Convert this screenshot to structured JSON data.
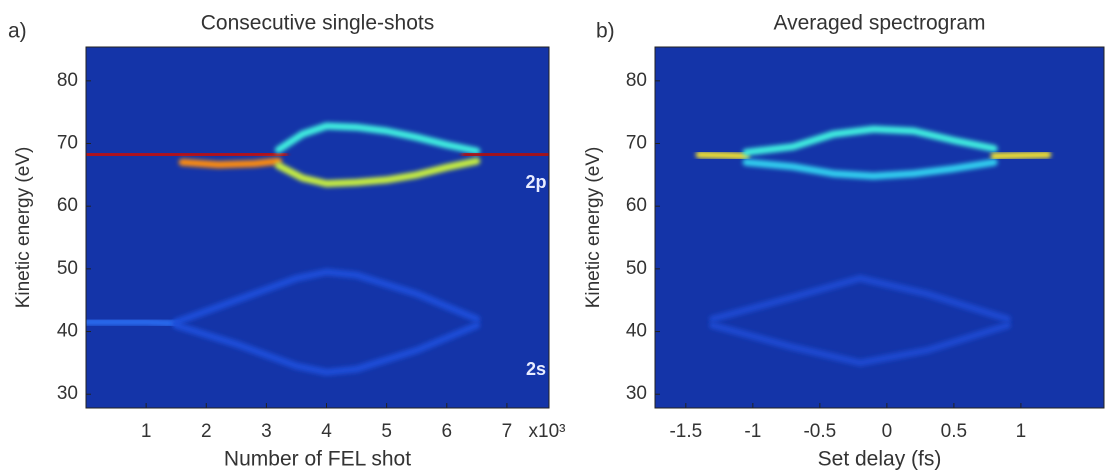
{
  "chart_data": [
    {
      "type": "spectrogram",
      "panel_label": "a)",
      "title": "Consecutive single-shots",
      "xlabel": "Number of FEL shot",
      "ylabel": "Kinetic energy (eV)",
      "x_multiplier": "x10³",
      "annotations": [
        "2p",
        "2s"
      ],
      "xlim": [
        0,
        7.7
      ],
      "ylim": [
        27.8,
        85.4
      ],
      "xticks": [
        1,
        2,
        3,
        4,
        5,
        6,
        7
      ],
      "yticks": [
        30,
        40,
        50,
        60,
        70,
        80
      ],
      "background": "#1434a8",
      "grid": false,
      "series": [
        {
          "color": "#c01010",
          "x": [
            0,
            1,
            2,
            3,
            3.3
          ],
          "values": [
            68.2,
            68.2,
            68.2,
            68.3,
            68.2
          ]
        },
        {
          "color": "#ff8c10",
          "x": [
            1.6,
            2.2,
            2.8,
            3.2
          ],
          "values": [
            67,
            66.6,
            66.8,
            67.2
          ]
        },
        {
          "color": "#40f0e0",
          "x": [
            3.2,
            3.6,
            4,
            4.5,
            5,
            5.5,
            6,
            6.5
          ],
          "values": [
            69,
            71.5,
            72.8,
            72.6,
            72,
            71,
            69.8,
            68.8
          ]
        },
        {
          "color": "#c8f040",
          "x": [
            3.2,
            3.6,
            4,
            4.5,
            5,
            5.5,
            6,
            6.5
          ],
          "values": [
            66.5,
            64.5,
            63.6,
            63.8,
            64.2,
            65,
            66.2,
            67.2
          ]
        },
        {
          "color": "#b01010",
          "x": [
            6.3,
            7,
            7.7
          ],
          "values": [
            68.2,
            68.3,
            68.2
          ]
        },
        {
          "color": "#2a6cf0",
          "x": [
            0,
            1,
            1.5
          ],
          "values": [
            41.5,
            41.5,
            41.3
          ]
        },
        {
          "color": "#1f4ed8",
          "x": [
            1.5,
            2.5,
            3.5,
            4,
            4.5,
            5.5,
            6.5
          ],
          "values": [
            41.5,
            45,
            48.5,
            49.5,
            49,
            46,
            42
          ]
        },
        {
          "color": "#1f4ed8",
          "x": [
            1.5,
            2.5,
            3.5,
            4,
            4.5,
            5.5,
            6.5
          ],
          "values": [
            41,
            38,
            34.5,
            33.5,
            34,
            37,
            41
          ]
        },
        {
          "color": "#2a6cf0",
          "x": [
            6.5,
            7,
            7.7
          ],
          "values": [
            41.5,
            41.5,
            41.5
          ]
        }
      ]
    },
    {
      "type": "spectrogram",
      "panel_label": "b)",
      "title": "Averaged spectrogram",
      "xlabel": "Set delay (fs)",
      "ylabel": "Kinetic energy (eV)",
      "xlim": [
        -1.73,
        1.62
      ],
      "ylim": [
        27.8,
        85.4
      ],
      "xticks": [
        -1.5,
        -1,
        -0.5,
        0,
        0.5,
        1
      ],
      "yticks": [
        30,
        40,
        50,
        60,
        70,
        80
      ],
      "background": "#1434a8",
      "grid": false,
      "series": [
        {
          "color": "#c01010",
          "x": [
            -1.73,
            -1.55,
            -1.4
          ],
          "values": [
            68.2,
            68.2,
            68.2
          ]
        },
        {
          "color": "#f0e030",
          "x": [
            -1.4,
            -1.2,
            -1.05
          ],
          "values": [
            68.2,
            68.1,
            68
          ]
        },
        {
          "color": "#40f0e0",
          "x": [
            -1.05,
            -0.7,
            -0.4,
            -0.1,
            0.2,
            0.5,
            0.8
          ],
          "values": [
            68.6,
            69.5,
            71.5,
            72.3,
            72,
            70.5,
            69.2
          ]
        },
        {
          "color": "#30d0f0",
          "x": [
            -1.05,
            -0.7,
            -0.4,
            -0.1,
            0.2,
            0.5,
            0.8
          ],
          "values": [
            67,
            66.3,
            65.2,
            64.8,
            65.2,
            66,
            67
          ]
        },
        {
          "color": "#f0e030",
          "x": [
            0.8,
            1,
            1.2
          ],
          "values": [
            68,
            68.1,
            68.2
          ]
        },
        {
          "color": "#ff8c10",
          "x": [
            1.2,
            1.4,
            1.62
          ],
          "values": [
            68.2,
            68.2,
            68.2
          ]
        },
        {
          "color": "#2a6cf0",
          "x": [
            -1.73,
            -1.3
          ],
          "values": [
            41.5,
            41.5
          ]
        },
        {
          "color": "#1c48d0",
          "x": [
            -1.3,
            -0.7,
            -0.2,
            0.3,
            0.9
          ],
          "values": [
            42,
            45.5,
            48.5,
            46,
            42
          ]
        },
        {
          "color": "#1c48d0",
          "x": [
            -1.3,
            -0.7,
            -0.2,
            0.3,
            0.9
          ],
          "values": [
            41,
            37.5,
            35,
            37,
            41
          ]
        },
        {
          "color": "#2a6cf0",
          "x": [
            0.9,
            1.3,
            1.62
          ],
          "values": [
            41.5,
            41.5,
            41.5
          ]
        }
      ]
    }
  ]
}
